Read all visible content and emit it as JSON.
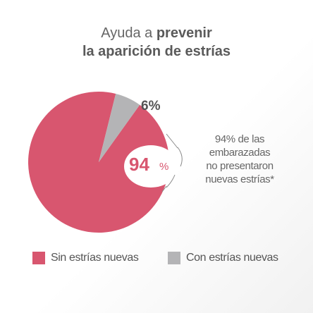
{
  "title": {
    "line1_normal": "Ayuda a ",
    "line1_bold": "prevenir",
    "line2_bold": "la aparición de estrías"
  },
  "chart_data": {
    "type": "pie",
    "categories": [
      "Sin estrías nuevas",
      "Con estrías nuevas"
    ],
    "values": [
      94,
      6
    ],
    "data_labels": [
      "94%",
      "6%"
    ],
    "colors": [
      "#d8566f",
      "#b4b4b6"
    ],
    "legend_position": "bottom"
  },
  "labels": {
    "big_number": "94",
    "big_unit": "%",
    "small_label": "6%"
  },
  "note": {
    "lines": [
      "94% de las",
      "embarazadas",
      "no presentaron",
      "nuevas estrías*"
    ]
  },
  "legend": {
    "items": [
      {
        "label": "Sin estrías nuevas",
        "color": "#d8566f"
      },
      {
        "label": "Con estrías nuevas",
        "color": "#b4b4b6"
      }
    ]
  }
}
